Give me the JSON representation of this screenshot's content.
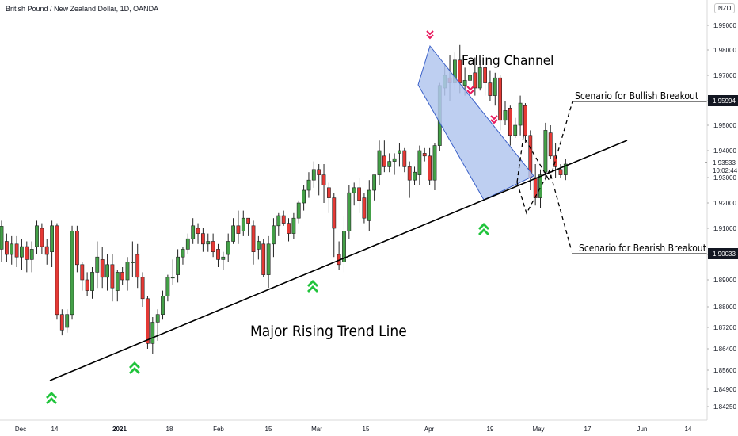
{
  "header": {
    "title": "British Pound / New Zealand Dollar, 1D, OANDA",
    "currency_badge": "NZD"
  },
  "chart_data": {
    "type": "candlestick",
    "title": "British Pound / New Zealand Dollar, 1D, OANDA",
    "ylim": [
      1.8425,
      1.993
    ],
    "y_ticks": [
      "1.99000",
      "1.98000",
      "1.97000",
      "1.96000",
      "1.95000",
      "1.94000",
      "1.93000",
      "1.92000",
      "1.91000",
      "1.90000",
      "1.89000",
      "1.88000",
      "1.87200",
      "1.86400",
      "1.85600",
      "1.84900",
      "1.84250"
    ],
    "x_ticks": [
      "Dec",
      "14",
      "2021",
      "18",
      "Feb",
      "15",
      "Mar",
      "15",
      "Apr",
      "19",
      "May",
      "17",
      "Jun",
      "14"
    ],
    "price_labels": {
      "bullish_level": "1.95994",
      "bearish_level": "1.90033",
      "current_price": "1.93533",
      "countdown": "10:02:44"
    },
    "colors": {
      "up": "#43a047",
      "down": "#e53935",
      "channel_fill": "#b3c7ef",
      "channel_stroke": "#3a60c8",
      "support_arrow": "#21c43c",
      "top_arrow": "#e8195d"
    },
    "annotations": {
      "falling_channel": "Falling Channel",
      "trend_line": "Major Rising Trend Line",
      "bullish": "Scenario for Bullish Breakout",
      "bearish": "Scenario for Bearish Breakout"
    },
    "candles": [
      [
        1.902,
        1.9108,
        1.897,
        1.913
      ],
      [
        1.905,
        1.9,
        1.897,
        1.908
      ],
      [
        1.9,
        1.904,
        1.896,
        1.907
      ],
      [
        1.904,
        1.899,
        1.895,
        1.907
      ],
      [
        1.899,
        1.903,
        1.894,
        1.906
      ],
      [
        1.903,
        1.898,
        1.893,
        1.905
      ],
      [
        1.898,
        1.902,
        1.893,
        1.905
      ],
      [
        1.903,
        1.911,
        1.9,
        1.913
      ],
      [
        1.91,
        1.903,
        1.9,
        1.912
      ],
      [
        1.903,
        1.9,
        1.896,
        1.906
      ],
      [
        1.901,
        1.911,
        1.895,
        1.913
      ],
      [
        1.911,
        1.877,
        1.875,
        1.912
      ],
      [
        1.877,
        1.871,
        1.869,
        1.879
      ],
      [
        1.872,
        1.877,
        1.87,
        1.879
      ],
      [
        1.877,
        1.909,
        1.875,
        1.911
      ],
      [
        1.909,
        1.896,
        1.893,
        1.911
      ],
      [
        1.896,
        1.89,
        1.886,
        1.897
      ],
      [
        1.89,
        1.886,
        1.884,
        1.893
      ],
      [
        1.886,
        1.893,
        1.883,
        1.895
      ],
      [
        1.893,
        1.899,
        1.887,
        1.905
      ],
      [
        1.898,
        1.891,
        1.887,
        1.903
      ],
      [
        1.891,
        1.896,
        1.886,
        1.9
      ],
      [
        1.896,
        1.887,
        1.882,
        1.9
      ],
      [
        1.886,
        1.893,
        1.882,
        1.894
      ],
      [
        1.893,
        1.89,
        1.888,
        1.895
      ],
      [
        1.89,
        1.897,
        1.886,
        1.899
      ],
      [
        1.897,
        1.897,
        1.891,
        1.905
      ],
      [
        1.9,
        1.891,
        1.887,
        1.904
      ],
      [
        1.891,
        1.883,
        1.88,
        1.893
      ],
      [
        1.883,
        1.866,
        1.864,
        1.884
      ],
      [
        1.866,
        1.874,
        1.862,
        1.876
      ],
      [
        1.874,
        1.877,
        1.867,
        1.879
      ],
      [
        1.877,
        1.884,
        1.875,
        1.886
      ],
      [
        1.884,
        1.891,
        1.882,
        1.892
      ],
      [
        1.891,
        1.891,
        1.888,
        1.898
      ],
      [
        1.892,
        1.899,
        1.889,
        1.902
      ],
      [
        1.899,
        1.902,
        1.896,
        1.903
      ],
      [
        1.902,
        1.906,
        1.9,
        1.908
      ],
      [
        1.906,
        1.911,
        1.904,
        1.914
      ],
      [
        1.91,
        1.908,
        1.904,
        1.912
      ],
      [
        1.908,
        1.904,
        1.901,
        1.91
      ],
      [
        1.904,
        1.905,
        1.901,
        1.908
      ],
      [
        1.905,
        1.901,
        1.899,
        1.908
      ],
      [
        1.902,
        1.898,
        1.895,
        1.904
      ],
      [
        1.898,
        1.899,
        1.894,
        1.901
      ],
      [
        1.9,
        1.905,
        1.897,
        1.908
      ],
      [
        1.905,
        1.911,
        1.904,
        1.914
      ],
      [
        1.911,
        1.908,
        1.904,
        1.917
      ],
      [
        1.909,
        1.914,
        1.907,
        1.917
      ],
      [
        1.914,
        1.912,
        1.907,
        1.914
      ],
      [
        1.911,
        1.901,
        1.896,
        1.913
      ],
      [
        1.902,
        1.905,
        1.898,
        1.907
      ],
      [
        1.904,
        1.892,
        1.891,
        1.906
      ],
      [
        1.892,
        1.904,
        1.887,
        1.907
      ],
      [
        1.904,
        1.911,
        1.899,
        1.914
      ],
      [
        1.911,
        1.915,
        1.907,
        1.916
      ],
      [
        1.915,
        1.912,
        1.911,
        1.917
      ],
      [
        1.912,
        1.908,
        1.905,
        1.914
      ],
      [
        1.908,
        1.914,
        1.906,
        1.916
      ],
      [
        1.914,
        1.92,
        1.912,
        1.921
      ],
      [
        1.92,
        1.925,
        1.917,
        1.927
      ],
      [
        1.925,
        1.929,
        1.922,
        1.932
      ],
      [
        1.929,
        1.933,
        1.926,
        1.936
      ],
      [
        1.933,
        1.931,
        1.923,
        1.935
      ],
      [
        1.931,
        1.927,
        1.92,
        1.935
      ],
      [
        1.926,
        1.922,
        1.916,
        1.928
      ],
      [
        1.922,
        1.91,
        1.899,
        1.924
      ],
      [
        1.9,
        1.896,
        1.894,
        1.905
      ],
      [
        1.897,
        1.909,
        1.893,
        1.915
      ],
      [
        1.909,
        1.924,
        1.906,
        1.927
      ],
      [
        1.924,
        1.926,
        1.919,
        1.928
      ],
      [
        1.926,
        1.921,
        1.916,
        1.93
      ],
      [
        1.922,
        1.914,
        1.912,
        1.924
      ],
      [
        1.913,
        1.925,
        1.909,
        1.929
      ],
      [
        1.925,
        1.931,
        1.921,
        1.931
      ],
      [
        1.931,
        1.94,
        1.927,
        1.944
      ],
      [
        1.938,
        1.934,
        1.932,
        1.944
      ],
      [
        1.934,
        1.936,
        1.932,
        1.939
      ],
      [
        1.936,
        1.937,
        1.931,
        1.939
      ],
      [
        1.939,
        1.94,
        1.934,
        1.943
      ],
      [
        1.94,
        1.934,
        1.932,
        1.941
      ],
      [
        1.934,
        1.929,
        1.922,
        1.936
      ],
      [
        1.929,
        1.932,
        1.927,
        1.934
      ],
      [
        1.931,
        1.94,
        1.927,
        1.942
      ],
      [
        1.939,
        1.938,
        1.936,
        1.941
      ],
      [
        1.938,
        1.929,
        1.927,
        1.941
      ],
      [
        1.929,
        1.942,
        1.925,
        1.943
      ],
      [
        1.942,
        1.966,
        1.94,
        1.967
      ],
      [
        1.965,
        1.97,
        1.962,
        1.974
      ],
      [
        1.969,
        1.967,
        1.96,
        1.978
      ],
      [
        1.967,
        1.976,
        1.964,
        1.979
      ],
      [
        1.976,
        1.967,
        1.963,
        1.982
      ],
      [
        1.966,
        1.968,
        1.962,
        1.973
      ],
      [
        1.968,
        1.97,
        1.965,
        1.974
      ],
      [
        1.971,
        1.965,
        1.962,
        1.977
      ],
      [
        1.965,
        1.973,
        1.964,
        1.976
      ],
      [
        1.973,
        1.967,
        1.962,
        1.975
      ],
      [
        1.967,
        1.962,
        1.96,
        1.972
      ],
      [
        1.962,
        1.969,
        1.958,
        1.971
      ],
      [
        1.969,
        1.952,
        1.948,
        1.97
      ],
      [
        1.952,
        1.956,
        1.95,
        1.96
      ],
      [
        1.957,
        1.946,
        1.942,
        1.958
      ],
      [
        1.946,
        1.95,
        1.945,
        1.953
      ],
      [
        1.95,
        1.959,
        1.946,
        1.962
      ],
      [
        1.958,
        1.946,
        1.943,
        1.959
      ],
      [
        1.946,
        1.93,
        1.925,
        1.948
      ],
      [
        1.93,
        1.922,
        1.919,
        1.935
      ],
      [
        1.922,
        1.931,
        1.918,
        1.933
      ],
      [
        1.932,
        1.948,
        1.929,
        1.951
      ],
      [
        1.947,
        1.938,
        1.937,
        1.95
      ],
      [
        1.938,
        1.934,
        1.93,
        1.943
      ],
      [
        1.933,
        1.931,
        1.93,
        1.935
      ],
      [
        1.931,
        1.935,
        1.929,
        1.937
      ]
    ],
    "candle_source": "Estimated OHLC [open, close, low, high] for each daily bar, read off the y-axis"
  }
}
